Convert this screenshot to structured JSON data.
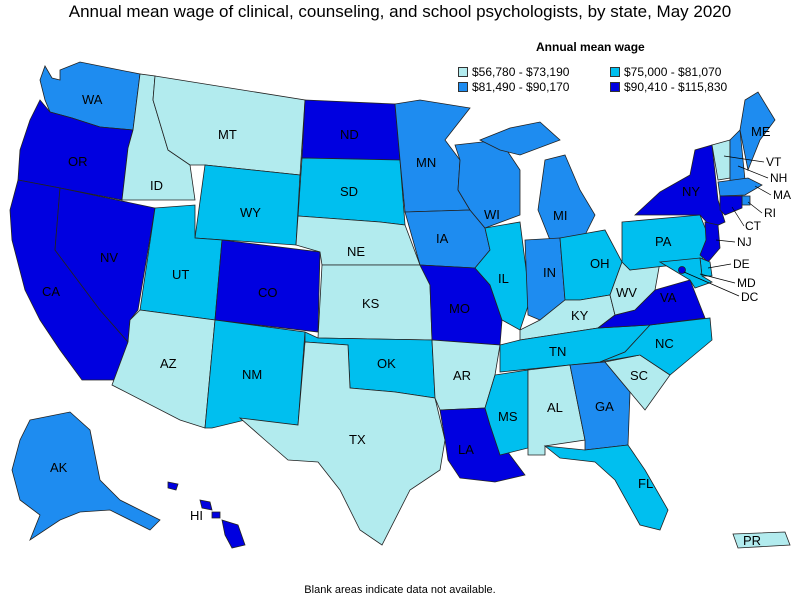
{
  "title": "Annual mean wage of clinical, counseling, and school psychologists, by state, May 2020",
  "legend": {
    "title": "Annual mean wage",
    "bins": [
      {
        "label": "$56,780 - $73,190",
        "color": "#b2ebee"
      },
      {
        "label": "$75,000 - $81,070",
        "color": "#00bfef"
      },
      {
        "label": "$81,490 - $90,170",
        "color": "#1e8cf0"
      },
      {
        "label": "$90,410 - $115,830",
        "color": "#0000e0"
      }
    ]
  },
  "footnote": "Blank areas indicate data not available.",
  "states": {
    "WA": 2,
    "OR": 3,
    "CA": 3,
    "NV": 3,
    "ID": 0,
    "MT": 0,
    "WY": 1,
    "UT": 1,
    "AZ": 0,
    "CO": 3,
    "NM": 1,
    "ND": 3,
    "SD": 1,
    "NE": 0,
    "KS": 0,
    "OK": 1,
    "TX": 0,
    "MN": 2,
    "IA": 2,
    "MO": 3,
    "AR": 0,
    "LA": 3,
    "WI": 2,
    "IL": 1,
    "MI": 2,
    "IN": 2,
    "OH": 1,
    "KY": 0,
    "TN": 1,
    "MS": 1,
    "AL": 0,
    "GA": 2,
    "FL": 1,
    "SC": 0,
    "NC": 1,
    "VA": 3,
    "WV": 0,
    "PA": 1,
    "NY": 3,
    "VT": 0,
    "NH": 2,
    "ME": 2,
    "MA": 2,
    "RI": 2,
    "CT": 3,
    "NJ": 3,
    "DE": 1,
    "MD": 1,
    "DC": 3,
    "AK": 2,
    "HI": 3,
    "PR": 0
  }
}
